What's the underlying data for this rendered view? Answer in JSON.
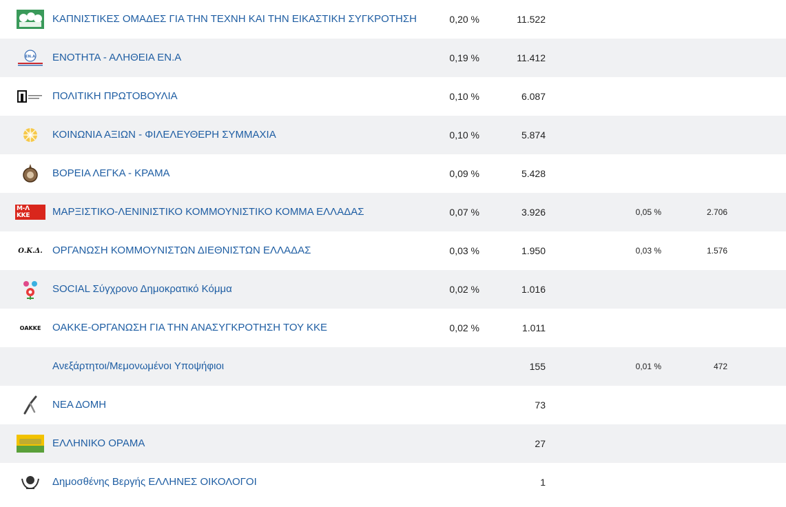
{
  "rows": [
    {
      "name": "ΚΑΠΝΙΣΤΙΚΕΣ ΟΜΑΔΕΣ ΓΙΑ ΤΗΝ ΤΕΧΝΗ ΚΑΙ ΤΗΝ ΕΙΚΑΣΤΙΚΗ ΣΥΓΚΡΟΤΗΣΗ",
      "pct": "0,20 %",
      "votes": "11.522",
      "pct2": "",
      "votes2": "",
      "logo": "kapnistikes-logo"
    },
    {
      "name": "ΕΝΟΤΗΤΑ - ΑΛΗΘΕΙΑ ΕΝ.Α",
      "pct": "0,19 %",
      "votes": "11.412",
      "pct2": "",
      "votes2": "",
      "logo": "ena-logo",
      "logo_text": "ΕΝ.Α"
    },
    {
      "name": "ΠΟΛΙΤΙΚΗ ΠΡΩΤΟΒΟΥΛΙΑ",
      "pct": "0,10 %",
      "votes": "6.087",
      "pct2": "",
      "votes2": "",
      "logo": "politiki-protovoulia-logo",
      "logo_text": "ΠΠ"
    },
    {
      "name": "ΚΟΙΝΩΝΙΑ ΑΞΙΩΝ - ΦΙΛΕΛΕΥΘΕΡΗ ΣΥΜΜΑΧΙΑ",
      "pct": "0,10 %",
      "votes": "5.874",
      "pct2": "",
      "votes2": "",
      "logo": "koinonia-axion-logo"
    },
    {
      "name": "ΒΟΡΕΙΑ ΛΕΓΚΑ - ΚΡΑΜΑ",
      "pct": "0,09 %",
      "votes": "5.428",
      "pct2": "",
      "votes2": "",
      "logo": "voreia-legka-logo"
    },
    {
      "name": "ΜΑΡΞΙΣΤΙΚΟ-ΛΕΝΙΝΙΣΤΙΚΟ ΚΟΜΜΟΥΝΙΣΤΙΚΟ ΚΟΜΜΑ ΕΛΛΑΔΑΣ",
      "pct": "0,07 %",
      "votes": "3.926",
      "pct2": "0,05 %",
      "votes2": "2.706",
      "logo": "mlkke-logo",
      "logo_text": "Μ-Λ ΚΚΕ"
    },
    {
      "name": "ΟΡΓΑΝΩΣΗ ΚΟΜΜΟΥΝΙΣΤΩΝ ΔΙΕΘΝΙΣΤΩΝ ΕΛΛΑΔΑΣ",
      "pct": "0,03 %",
      "votes": "1.950",
      "pct2": "0,03 %",
      "votes2": "1.576",
      "logo": "okd-logo",
      "logo_text": "Ο.Κ.Δ."
    },
    {
      "name": "SOCIAL Σύγχρονο Δημοκρατικό Κόμμα",
      "pct": "0,02 %",
      "votes": "1.016",
      "pct2": "",
      "votes2": "",
      "logo": "social-logo"
    },
    {
      "name": "ΟΑΚΚΕ-ΟΡΓΑΝΩΣΗ ΓΙΑ ΤΗΝ ΑΝΑΣΥΓΚΡΟΤΗΣΗ ΤΟΥ ΚΚΕ",
      "pct": "0,02 %",
      "votes": "1.011",
      "pct2": "",
      "votes2": "",
      "logo": "oakke-logo",
      "logo_text": "ΟΑΚΚΕ"
    },
    {
      "name": "Ανεξάρτητοι/Μεμονωμένοι Υποψήφιοι",
      "pct": "",
      "votes": "155",
      "pct2": "0,01 %",
      "votes2": "472",
      "logo": ""
    },
    {
      "name": "ΝΕΑ ΔΟΜΗ",
      "pct": "",
      "votes": "73",
      "pct2": "",
      "votes2": "",
      "logo": "nea-domi-logo"
    },
    {
      "name": "ΕΛΛΗΝΙΚΟ ΟΡΑΜΑ",
      "pct": "",
      "votes": "27",
      "pct2": "",
      "votes2": "",
      "logo": "elliniko-orama-logo"
    },
    {
      "name": "Δημοσθένης Βεργής ΕΛΛΗΝΕΣ ΟΙΚΟΛΟΓΟΙ",
      "pct": "",
      "votes": "1",
      "pct2": "",
      "votes2": "",
      "logo": "ellines-oikologoi-logo"
    }
  ],
  "colors": {
    "link": "#1f5ea3",
    "alt_row": "#f0f1f3"
  }
}
